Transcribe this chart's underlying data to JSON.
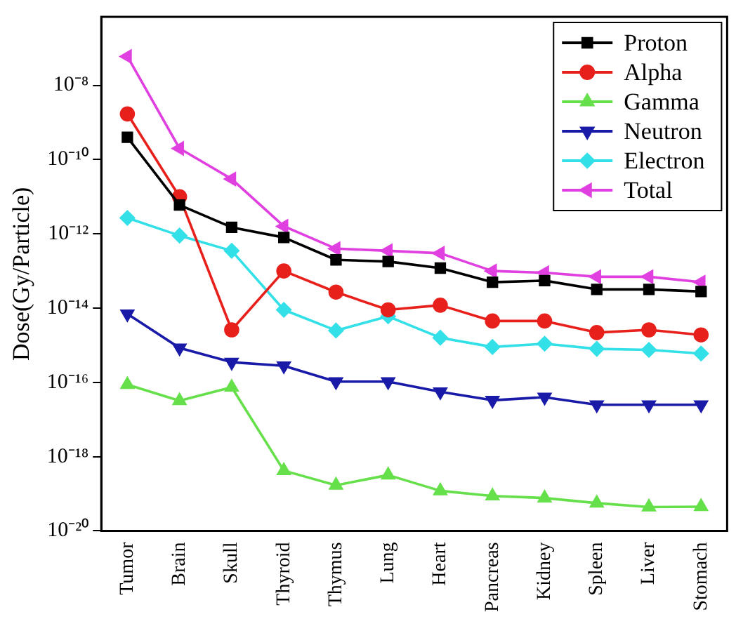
{
  "chart_data": {
    "type": "line",
    "ylabel": "Dose(Gy/Particle)",
    "log": "y",
    "legend": "top right",
    "grid": false,
    "categories": [
      "Tumor",
      "Brain",
      "Skull",
      "Thyroid",
      "Thymus",
      "Lung",
      "Heart",
      "Pancreas",
      "Kidney",
      "Spleen",
      "Liver",
      "Stomach"
    ],
    "ylim": [
      1e-20,
      7e-07
    ],
    "yticks": [
      {
        "value": 1e-20,
        "label": "10⁻²⁰"
      },
      {
        "value": 1e-18,
        "label": "10⁻¹⁸"
      },
      {
        "value": 1e-16,
        "label": "10⁻¹⁶"
      },
      {
        "value": 1e-14,
        "label": "10⁻¹⁴"
      },
      {
        "value": 1e-12,
        "label": "10⁻¹²"
      },
      {
        "value": 1e-10,
        "label": "10⁻¹⁰"
      },
      {
        "value": 1e-08,
        "label": "10⁻⁸"
      }
    ],
    "series": [
      {
        "name": "Proton",
        "color": "#000000",
        "marker": "square",
        "values": [
          4e-10,
          6e-12,
          1.5e-12,
          8e-13,
          2e-13,
          1.8e-13,
          1.2e-13,
          5e-14,
          5.5e-14,
          3.2e-14,
          3.2e-14,
          2.8e-14
        ]
      },
      {
        "name": "Alpha",
        "color": "#e8201c",
        "marker": "circle",
        "values": [
          1.7e-09,
          1e-11,
          2.6e-15,
          1e-13,
          2.7e-14,
          9e-15,
          1.2e-14,
          4.5e-15,
          4.5e-15,
          2.2e-15,
          2.6e-15,
          1.9e-15
        ]
      },
      {
        "name": "Gamma",
        "color": "#66e04a",
        "marker": "triangle",
        "values": [
          8.7e-17,
          3.2e-17,
          7.4e-17,
          4.2e-19,
          1.7e-19,
          3.2e-19,
          1.2e-19,
          8.7e-20,
          7.7e-20,
          5.6e-20,
          4.4e-20,
          4.5e-20
        ]
      },
      {
        "name": "Neutron",
        "color": "#1a1aa8",
        "marker": "triangle-down",
        "values": [
          7e-15,
          8.5e-16,
          3.5e-16,
          2.8e-16,
          1.05e-16,
          1.05e-16,
          5.6e-17,
          3.3e-17,
          4e-17,
          2.5e-17,
          2.5e-17,
          2.5e-17
        ]
      },
      {
        "name": "Electron",
        "color": "#33e0e8",
        "marker": "diamond",
        "values": [
          2.7e-12,
          9e-13,
          3.5e-13,
          9e-15,
          2.5e-15,
          6e-15,
          1.6e-15,
          9e-16,
          1.1e-15,
          8e-16,
          7.5e-16,
          6e-16
        ]
      },
      {
        "name": "Total",
        "color": "#e040e0",
        "marker": "triangle-left",
        "values": [
          6e-08,
          2e-10,
          3e-11,
          1.6e-12,
          4e-13,
          3.5e-13,
          3e-13,
          1e-13,
          9e-14,
          7e-14,
          7e-14,
          5e-14
        ]
      }
    ]
  }
}
